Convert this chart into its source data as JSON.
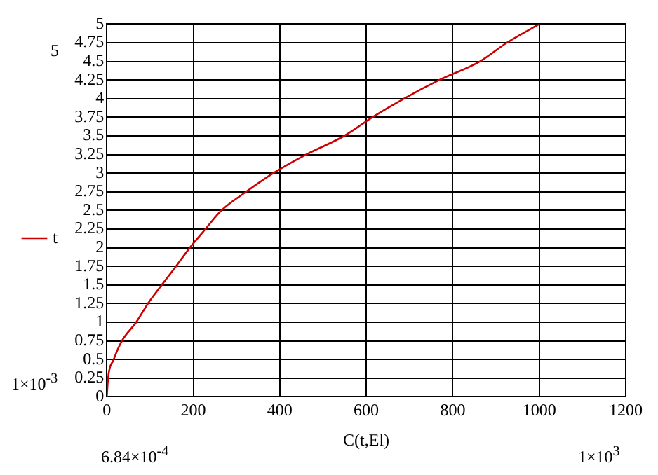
{
  "chart_data": {
    "type": "line",
    "xlabel": "C(t,El)",
    "x": [
      0,
      3,
      16,
      35,
      68,
      95,
      127,
      160,
      192,
      228,
      265,
      322,
      385,
      461,
      549,
      614,
      687,
      769,
      863,
      925,
      1000
    ],
    "series": [
      {
        "name": "t",
        "color": "#cc0000",
        "values": [
          0,
          0.25,
          0.5,
          0.75,
          1,
          1.25,
          1.5,
          1.75,
          2,
          2.25,
          2.5,
          2.75,
          3,
          3.25,
          3.5,
          3.75,
          4,
          4.25,
          4.5,
          4.75,
          5
        ]
      }
    ],
    "xlim": [
      0,
      1200
    ],
    "xticks": [
      0,
      200,
      400,
      600,
      800,
      1000,
      1200
    ],
    "ylim": [
      0,
      5
    ],
    "yticks": [
      0,
      0.25,
      0.5,
      0.75,
      1,
      1.25,
      1.5,
      1.75,
      2,
      2.25,
      2.5,
      2.75,
      3,
      3.25,
      3.5,
      3.75,
      4,
      4.25,
      4.5,
      4.75,
      5
    ],
    "grid": true,
    "legend": "left",
    "marker": "none",
    "line_style": "solid",
    "annotations": [
      "5",
      "1×10$^{-3}$",
      "6.84×10$^{-4}$",
      "1×10$^{3}$"
    ]
  }
}
